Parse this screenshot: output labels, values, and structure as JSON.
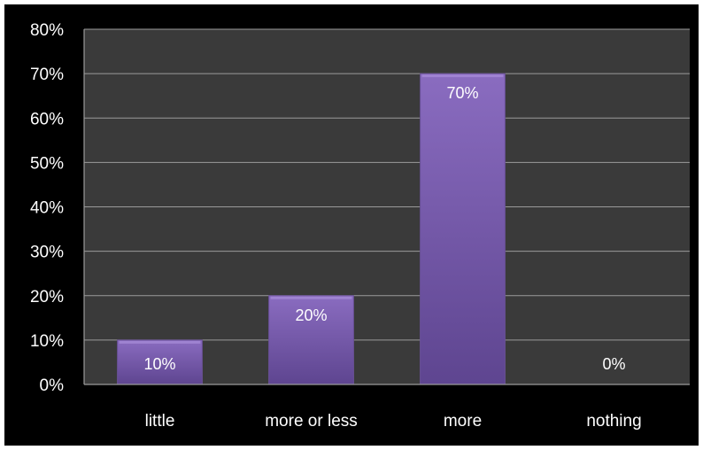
{
  "chart_data": {
    "type": "bar",
    "categories": [
      "little",
      "more or less",
      "more",
      "nothing"
    ],
    "values": [
      10,
      20,
      70,
      0
    ],
    "data_labels": [
      "10%",
      "20%",
      "70%",
      "0%"
    ],
    "title": "",
    "xlabel": "",
    "ylabel": "",
    "ylim": [
      0,
      80
    ],
    "y_ticks": [
      0,
      10,
      20,
      30,
      40,
      50,
      60,
      70,
      80
    ],
    "y_tick_labels": [
      "0%",
      "10%",
      "20%",
      "30%",
      "40%",
      "50%",
      "60%",
      "70%",
      "80%"
    ],
    "grid": true,
    "legend": "none",
    "colors": {
      "background": "#000000",
      "plot_area": "#3a3a3a",
      "bar_light": "#8a6cc0",
      "bar_dark": "#5e4590",
      "gridline": "#9a9a9a",
      "text": "#ffffff"
    }
  }
}
